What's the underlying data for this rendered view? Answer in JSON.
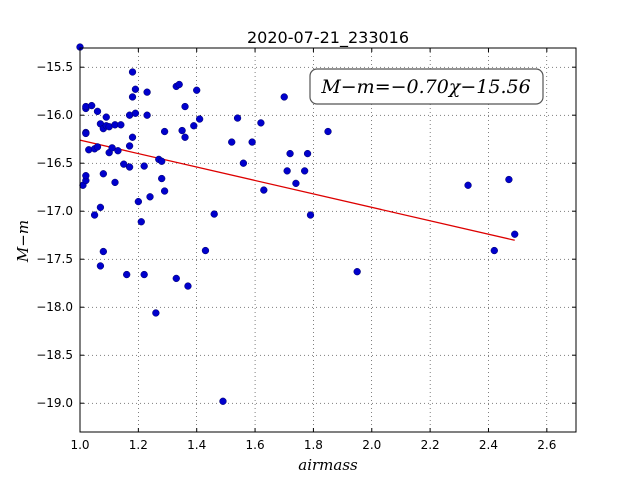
{
  "chart_data": {
    "type": "scatter",
    "title": "2020-07-21_233016",
    "xlabel": "airmass",
    "ylabel": "M−m",
    "xlim": [
      1.0,
      2.7
    ],
    "ylim": [
      -19.3,
      -15.3
    ],
    "xticks": [
      "1.0",
      "1.2",
      "1.4",
      "1.6",
      "1.8",
      "2.0",
      "2.2",
      "2.4",
      "2.6"
    ],
    "yticks": [
      "−15.5",
      "−16.0",
      "−16.5",
      "−17.0",
      "−17.5",
      "−18.0",
      "−18.5",
      "−19.0"
    ],
    "grid": true,
    "annotation": "M−m=−0.70χ−15.56",
    "point_color": "#0000cc",
    "fit_color": "#dd0000",
    "fit_line": {
      "slope": -0.7,
      "intercept": -15.56,
      "x": [
        1.0,
        2.49
      ]
    },
    "points": [
      [
        1.0,
        -15.29
      ],
      [
        1.01,
        -16.73
      ],
      [
        1.02,
        -16.68
      ],
      [
        1.02,
        -16.63
      ],
      [
        1.02,
        -15.93
      ],
      [
        1.02,
        -15.91
      ],
      [
        1.02,
        -16.18
      ],
      [
        1.02,
        -16.19
      ],
      [
        1.03,
        -16.36
      ],
      [
        1.04,
        -15.9
      ],
      [
        1.05,
        -16.35
      ],
      [
        1.05,
        -17.04
      ],
      [
        1.06,
        -15.96
      ],
      [
        1.06,
        -16.33
      ],
      [
        1.07,
        -16.96
      ],
      [
        1.07,
        -17.57
      ],
      [
        1.07,
        -16.09
      ],
      [
        1.08,
        -16.14
      ],
      [
        1.08,
        -16.61
      ],
      [
        1.08,
        -17.42
      ],
      [
        1.09,
        -16.02
      ],
      [
        1.09,
        -16.11
      ],
      [
        1.1,
        -16.12
      ],
      [
        1.1,
        -16.39
      ],
      [
        1.11,
        -16.34
      ],
      [
        1.12,
        -16.1
      ],
      [
        1.12,
        -16.7
      ],
      [
        1.13,
        -16.37
      ],
      [
        1.14,
        -16.1
      ],
      [
        1.15,
        -16.51
      ],
      [
        1.16,
        -17.66
      ],
      [
        1.17,
        -16.54
      ],
      [
        1.17,
        -16.0
      ],
      [
        1.17,
        -16.32
      ],
      [
        1.18,
        -16.23
      ],
      [
        1.18,
        -15.55
      ],
      [
        1.18,
        -15.81
      ],
      [
        1.19,
        -15.73
      ],
      [
        1.19,
        -15.98
      ],
      [
        1.2,
        -16.9
      ],
      [
        1.21,
        -17.11
      ],
      [
        1.22,
        -16.53
      ],
      [
        1.22,
        -17.66
      ],
      [
        1.23,
        -15.76
      ],
      [
        1.23,
        -16.0
      ],
      [
        1.24,
        -16.85
      ],
      [
        1.26,
        -18.06
      ],
      [
        1.27,
        -16.46
      ],
      [
        1.28,
        -16.66
      ],
      [
        1.28,
        -16.48
      ],
      [
        1.29,
        -16.17
      ],
      [
        1.29,
        -16.79
      ],
      [
        1.33,
        -15.7
      ],
      [
        1.34,
        -15.68
      ],
      [
        1.33,
        -17.7
      ],
      [
        1.35,
        -16.16
      ],
      [
        1.36,
        -16.23
      ],
      [
        1.36,
        -15.91
      ],
      [
        1.37,
        -17.78
      ],
      [
        1.39,
        -16.11
      ],
      [
        1.4,
        -15.74
      ],
      [
        1.41,
        -16.04
      ],
      [
        1.43,
        -17.41
      ],
      [
        1.46,
        -17.03
      ],
      [
        1.49,
        -18.98
      ],
      [
        1.52,
        -16.28
      ],
      [
        1.54,
        -16.03
      ],
      [
        1.56,
        -16.5
      ],
      [
        1.59,
        -16.28
      ],
      [
        1.62,
        -16.08
      ],
      [
        1.63,
        -16.78
      ],
      [
        1.7,
        -15.81
      ],
      [
        1.71,
        -16.58
      ],
      [
        1.72,
        -16.4
      ],
      [
        1.74,
        -16.71
      ],
      [
        1.77,
        -16.58
      ],
      [
        1.78,
        -16.4
      ],
      [
        1.79,
        -17.04
      ],
      [
        1.85,
        -16.17
      ],
      [
        1.95,
        -17.63
      ],
      [
        2.33,
        -16.73
      ],
      [
        2.42,
        -17.41
      ],
      [
        2.47,
        -16.67
      ],
      [
        2.49,
        -17.24
      ]
    ]
  }
}
